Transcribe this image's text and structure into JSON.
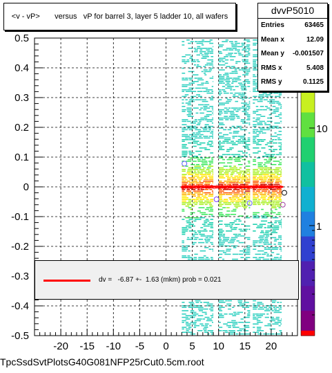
{
  "window": {
    "filename": "TpcSsdSvtPlotsG40G081NFP25rCut0.5cm.root"
  },
  "chart_data": {
    "type": "heatmap",
    "title": "<v - vP>       versus   vP for barrel 3, layer 5 ladder 10, all wafers",
    "xlabel": "",
    "ylabel": "",
    "xlim": [
      -25,
      25
    ],
    "ylim": [
      -0.5,
      0.5
    ],
    "x_ticks": [
      "-20",
      "-15",
      "-10",
      "-5",
      "0",
      "5",
      "10",
      "15",
      "20"
    ],
    "y_ticks": [
      "0.5",
      "0.4",
      "0.3",
      "0.2",
      "0.1",
      "0",
      "-0.1",
      "-0.2",
      "-0.3",
      "-0.4",
      "-0.5"
    ],
    "z_scale": "log",
    "z_ticks": [
      "1",
      "10"
    ],
    "grid": true,
    "data_bands_x": [
      [
        3,
        9
      ],
      [
        10,
        16
      ],
      [
        16.5,
        22
      ]
    ],
    "profile_mean_y": 0.0,
    "outlier_points": [
      {
        "x": 3.5,
        "y": 0.078
      },
      {
        "x": 9.6,
        "y": -0.042
      },
      {
        "x": 15.9,
        "y": -0.055
      },
      {
        "x": 22.2,
        "y": -0.06
      },
      {
        "x": 22.5,
        "y": -0.02
      }
    ],
    "stats": {
      "name": "dvvP5010",
      "entries_label": "Entries",
      "entries": "63465",
      "mean_x_label": "Mean x",
      "mean_x": "12.09",
      "mean_y_label": "Mean y",
      "mean_y": "-0.001507",
      "rms_x_label": "RMS x",
      "rms_x": "5.408",
      "rms_y_label": "RMS y",
      "rms_y": "0.1125"
    },
    "fit": {
      "text": "dv =   -6.87 +-  1.63 (mkm) prob = 0.021",
      "line_color": "#ff0000"
    }
  }
}
